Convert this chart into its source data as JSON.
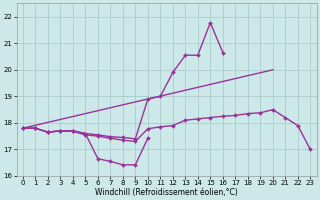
{
  "background_color": "#cce8e8",
  "grid_color": "#aacccc",
  "line_color": "#993399",
  "xlabel": "Windchill (Refroidissement éolien,°C)",
  "xlim": [
    -0.5,
    23.5
  ],
  "ylim": [
    16,
    22.5
  ],
  "yticks": [
    16,
    17,
    18,
    19,
    20,
    21,
    22
  ],
  "xticks": [
    0,
    1,
    2,
    3,
    4,
    5,
    6,
    7,
    8,
    9,
    10,
    11,
    12,
    13,
    14,
    15,
    16,
    17,
    18,
    19,
    20,
    21,
    22,
    23
  ],
  "series": [
    {
      "x": [
        0,
        1,
        2,
        3,
        4,
        5,
        6,
        7,
        8,
        9,
        10
      ],
      "y": [
        17.8,
        17.8,
        17.65,
        17.7,
        17.7,
        17.6,
        16.65,
        16.55,
        16.42,
        16.42,
        17.42
      ],
      "marker": "D",
      "markersize": 2.0,
      "linewidth": 1.0
    },
    {
      "x": [
        0,
        1,
        2,
        3,
        4,
        5,
        6,
        7,
        8,
        9,
        10,
        11,
        12,
        13,
        14,
        15,
        16,
        17,
        18,
        19,
        20,
        21,
        22,
        23
      ],
      "y": [
        17.8,
        17.8,
        17.65,
        17.7,
        17.7,
        17.6,
        17.55,
        17.48,
        17.45,
        17.4,
        18.9,
        19.0,
        19.9,
        20.55,
        20.55,
        21.78,
        20.65,
        null,
        null,
        null,
        null,
        null,
        null,
        null
      ],
      "marker": "D",
      "markersize": 2.0,
      "linewidth": 1.0
    },
    {
      "x": [
        0,
        1,
        2,
        3,
        4,
        5,
        6,
        7,
        8,
        9,
        10,
        11,
        12,
        13,
        14,
        15,
        16,
        17,
        18,
        19,
        20,
        21,
        22,
        23
      ],
      "y": [
        17.8,
        17.8,
        17.65,
        17.7,
        17.68,
        17.55,
        17.5,
        17.42,
        17.35,
        17.3,
        17.78,
        17.85,
        17.9,
        18.1,
        18.15,
        18.2,
        18.25,
        18.28,
        18.35,
        18.38,
        18.5,
        18.2,
        17.9,
        17.0
      ],
      "marker": "D",
      "markersize": 2.0,
      "linewidth": 1.0
    },
    {
      "x": [
        0,
        20
      ],
      "y": [
        17.8,
        20.0
      ],
      "marker": null,
      "markersize": 0,
      "linewidth": 1.0
    }
  ]
}
